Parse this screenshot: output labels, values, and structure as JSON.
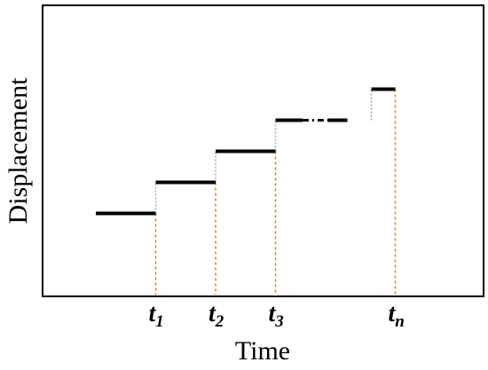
{
  "chart_data": {
    "type": "line",
    "title": "",
    "xlabel": "Time",
    "ylabel": "Displacement",
    "grid": false,
    "legend": "none",
    "x_tick_labels": [
      {
        "base": "t",
        "sub": "1"
      },
      {
        "base": "t",
        "sub": "2"
      },
      {
        "base": "t",
        "sub": "3"
      },
      {
        "base": "t",
        "sub": "n"
      }
    ],
    "step_times": [
      1,
      2,
      3,
      5
    ],
    "xlim": [
      -0.5,
      6
    ],
    "ylim": [
      0,
      6.5
    ],
    "steps": [
      {
        "x_start": 0,
        "x_end": 1,
        "level": 2.3
      },
      {
        "x_start": 1,
        "x_end": 2,
        "level": 3.3
      },
      {
        "x_start": 2,
        "x_end": 3,
        "level": 4.3
      },
      {
        "x_start": 3,
        "x_end": 4.2,
        "level": 5.3,
        "break": [
          3.45,
          4.2
        ]
      },
      {
        "x_start": 4.6,
        "x_end": 5,
        "level": 6.3
      }
    ],
    "colors": {
      "step_line": "#000000",
      "vertical_connector": "#aaaaaa",
      "time_marker": "#e07a1f",
      "frame": "#000000"
    }
  }
}
